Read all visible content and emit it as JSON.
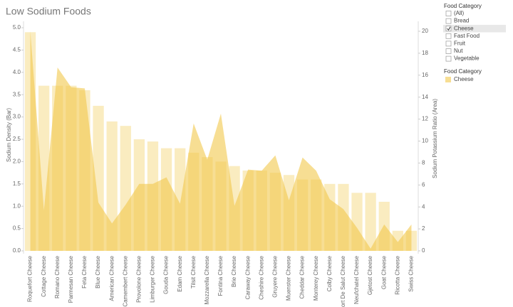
{
  "chart_data": {
    "type": "bar",
    "title": "Low Sodium Foods",
    "ylabel": "Sodium Density (Bar)",
    "y2label": "Sodium Potassium Ratio (Area)",
    "categories": [
      "Roquefort Cheese",
      "Cottage Cheese",
      "Romano Cheese",
      "Parmesan Cheese",
      "Feta Cheese",
      "Blue Cheese",
      "American Cheese",
      "Camembert Cheese",
      "Provolone Cheese",
      "Limburger Cheese",
      "Gouda Cheese",
      "Edam Cheese",
      "Tilsit Cheese",
      "Mozzarella Cheese",
      "Fontina Cheese",
      "Brie Cheese",
      "Caraway Cheese",
      "Cheshire Cheese",
      "Gruyere Cheese",
      "Muenster Cheese",
      "Cheddar Cheese",
      "Monterey Cheese",
      "Colby Cheese",
      "Port De Salut Cheese",
      "Neufchatel Cheese",
      "Gjetost Cheese",
      "Goat Cheese",
      "Ricotta Cheese",
      "Swiss Cheese"
    ],
    "series": [
      {
        "type": "bar",
        "color": "#f2c84b",
        "values": [
          4.9,
          3.7,
          3.7,
          3.7,
          3.6,
          3.25,
          2.9,
          2.8,
          2.5,
          2.45,
          2.3,
          2.3,
          2.2,
          2.1,
          2.0,
          1.9,
          1.8,
          1.8,
          1.75,
          1.7,
          1.6,
          1.6,
          1.5,
          1.5,
          1.3,
          1.3,
          1.1,
          0.45,
          0.45
        ]
      },
      {
        "type": "area",
        "axis": "y2",
        "color": "#f2c84b",
        "values": [
          20,
          3.7,
          16.7,
          14.9,
          14.8,
          4.4,
          2.5,
          4.2,
          6.1,
          6.1,
          6.7,
          4.3,
          11.6,
          8.3,
          12.5,
          4.1,
          7.4,
          7.3,
          8.7,
          4.6,
          8.5,
          7.3,
          4.7,
          3.8,
          2.1,
          0.2,
          2.4,
          0.8,
          2.4
        ]
      }
    ],
    "ylim": [
      0,
      5
    ],
    "yticks": [
      {
        "value": 0,
        "label": "0.0"
      },
      0.5,
      {
        "value": 1,
        "label": "1.0"
      },
      1.5,
      {
        "value": 2,
        "label": "2.0"
      },
      2.5,
      {
        "value": 3,
        "label": "3.0"
      },
      3.5,
      {
        "value": 4,
        "label": "4.0"
      },
      4.5,
      {
        "value": 5,
        "label": "5.0"
      }
    ],
    "y2lim": [
      0,
      20
    ],
    "y2ticks": [
      0,
      2,
      4,
      6,
      8,
      10,
      12,
      14,
      16,
      18,
      20
    ],
    "grid": false
  },
  "filter": {
    "title": "Food Category",
    "options": [
      "(All)",
      "Bread",
      "Cheese",
      "Fast Food",
      "Fruit",
      "Nut",
      "Vegetable"
    ],
    "checked": [
      false,
      false,
      true,
      false,
      false,
      false,
      false
    ]
  },
  "legend": {
    "title": "Food Category",
    "items": [
      "Cheese"
    ]
  }
}
